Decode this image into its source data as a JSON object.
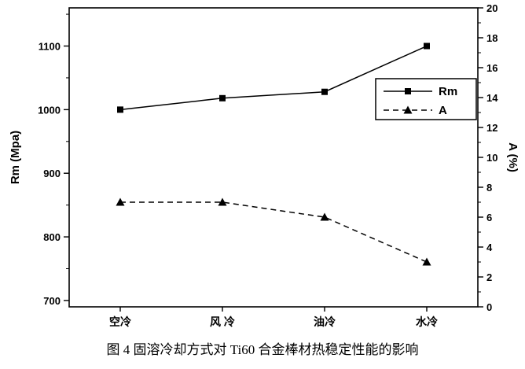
{
  "caption": "图 4 固溶冷却方式对 Ti60 合金棒材热稳定性能的影响",
  "chart_data": {
    "type": "line",
    "categories": [
      "空冷",
      "风 冷",
      "油冷",
      "水冷"
    ],
    "series": [
      {
        "name": "Rm",
        "axis": "left",
        "values": [
          1000,
          1018,
          1028,
          1100
        ],
        "marker": "square",
        "line": "solid"
      },
      {
        "name": "A",
        "axis": "right",
        "values": [
          7,
          7,
          6,
          3
        ],
        "marker": "triangle",
        "line": "dashed"
      }
    ],
    "left_axis": {
      "label": "Rm (Mpa)",
      "min": 690,
      "max": 1160,
      "ticks": [
        700,
        800,
        900,
        1000,
        1100
      ],
      "minor_step": 50
    },
    "right_axis": {
      "label": "A (%)",
      "min": 0,
      "max": 20,
      "ticks": [
        0,
        2,
        4,
        6,
        8,
        10,
        12,
        14,
        16,
        18,
        20
      ],
      "minor_step": 1
    },
    "legend": {
      "position": "right-center",
      "entries": [
        "Rm",
        "A"
      ]
    },
    "colors": {
      "line": "#000000",
      "background": "#ffffff"
    },
    "grid": false
  }
}
